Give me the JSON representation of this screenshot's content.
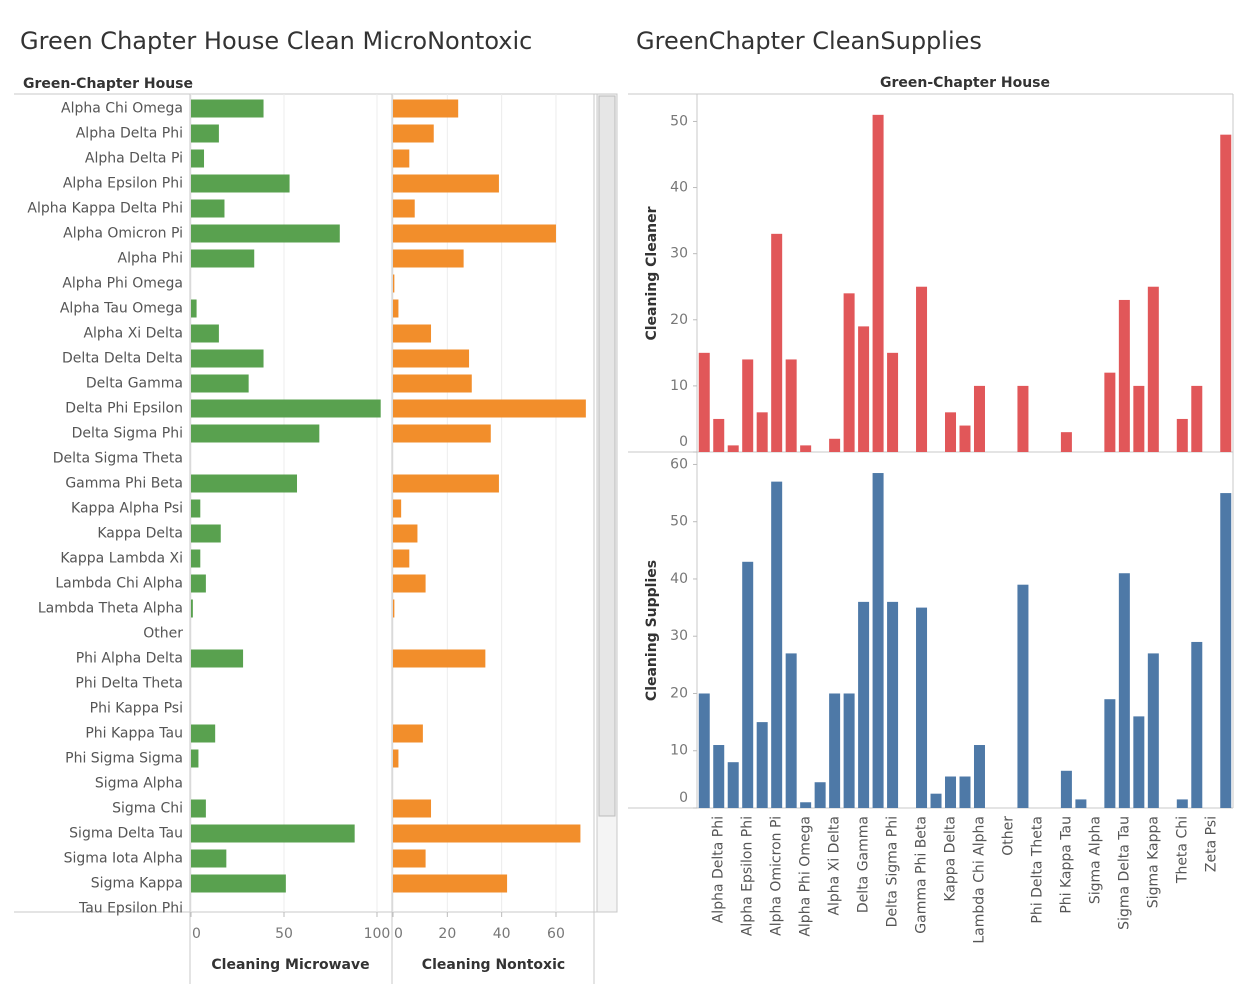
{
  "chart_data": [
    {
      "type": "bar",
      "orientation": "horizontal",
      "title": "Green Chapter House Clean MicroNontoxic",
      "row_label": "Green-Chapter House",
      "grid": true,
      "categories": [
        "Alpha Chi Omega",
        "Alpha Delta Phi",
        "Alpha Delta Pi",
        "Alpha Epsilon Phi",
        "Alpha Kappa Delta Phi",
        "Alpha Omicron Pi",
        "Alpha Phi",
        "Alpha Phi Omega",
        "Alpha Tau Omega",
        "Alpha Xi Delta",
        "Delta Delta Delta",
        "Delta Gamma",
        "Delta Phi Epsilon",
        "Delta Sigma Phi",
        "Delta Sigma Theta",
        "Gamma Phi Beta",
        "Kappa Alpha Psi",
        "Kappa Delta",
        "Kappa Lambda Xi",
        "Lambda Chi Alpha",
        "Lambda Theta Alpha",
        "Other",
        "Phi Alpha Delta",
        "Phi Delta Theta",
        "Phi Kappa Psi",
        "Phi Kappa Tau",
        "Phi Sigma Sigma",
        "Sigma Alpha",
        "Sigma Chi",
        "Sigma Delta Tau",
        "Sigma Iota Alpha",
        "Sigma Kappa",
        "Tau Epsilon Phi"
      ],
      "series": [
        {
          "name": "Cleaning Microwave",
          "color": "#59a14f",
          "xlim": [
            0,
            107
          ],
          "xticks": [
            0,
            50,
            100
          ],
          "values": [
            39,
            15,
            7,
            53,
            18,
            80,
            34,
            null,
            3,
            15,
            39,
            31,
            102,
            69,
            null,
            57,
            5,
            16,
            5,
            8,
            1,
            null,
            28,
            null,
            null,
            13,
            4,
            null,
            8,
            88,
            19,
            51,
            null
          ]
        },
        {
          "name": "Cleaning Nontoxic",
          "color": "#f28e2b",
          "xlim": [
            0,
            74
          ],
          "xticks": [
            0,
            20,
            40,
            60
          ],
          "values": [
            24,
            15,
            6,
            39,
            8,
            60,
            26,
            0.5,
            2,
            14,
            28,
            29,
            71,
            36,
            null,
            39,
            3,
            9,
            6,
            12,
            0.5,
            null,
            34,
            null,
            null,
            11,
            2,
            null,
            14,
            69,
            12,
            42,
            null
          ]
        }
      ]
    },
    {
      "type": "bar",
      "orientation": "vertical",
      "title": "GreenChapter CleanSupplies",
      "xlabel": "Green-Chapter House",
      "grid": false,
      "categories": [
        null,
        "Alpha Delta Phi",
        null,
        "Alpha Epsilon Phi",
        null,
        "Alpha Omicron Pi",
        null,
        "Alpha Phi Omega",
        null,
        "Alpha Xi Delta",
        null,
        "Delta Gamma",
        null,
        "Delta Sigma Phi",
        null,
        "Gamma Phi Beta",
        null,
        "Kappa Delta",
        null,
        "Lambda Chi Alpha",
        null,
        "Other",
        null,
        "Phi Delta Theta",
        null,
        "Phi Kappa Tau",
        null,
        "Sigma Alpha",
        null,
        "Sigma Delta Tau",
        null,
        "Sigma Kappa",
        null,
        "Theta Chi",
        null,
        "Zeta Psi",
        null
      ],
      "series": [
        {
          "name": "Cleaning Cleaner",
          "color": "#e15759",
          "ylim": [
            0,
            54
          ],
          "yticks": [
            0,
            10,
            20,
            30,
            40,
            50
          ],
          "values": [
            15,
            5,
            1,
            14,
            6,
            33,
            14,
            1,
            null,
            2,
            24,
            19,
            51,
            15,
            null,
            25,
            null,
            6,
            4,
            10,
            null,
            null,
            10,
            null,
            null,
            3,
            null,
            null,
            12,
            23,
            10,
            25,
            null,
            5,
            10,
            null,
            48
          ]
        },
        {
          "name": "Cleaning Supplies",
          "color": "#4e79a7",
          "ylim": [
            0,
            62
          ],
          "yticks": [
            0,
            10,
            20,
            30,
            40,
            50,
            60
          ],
          "values": [
            20,
            11,
            8,
            43,
            15,
            57,
            27,
            1,
            4.5,
            20,
            20,
            36,
            58.5,
            36,
            null,
            35,
            2.5,
            5.5,
            5.5,
            11,
            null,
            null,
            39,
            null,
            null,
            6.5,
            1.5,
            null,
            19,
            41,
            16,
            27,
            null,
            1.5,
            29,
            null,
            55
          ]
        }
      ]
    }
  ]
}
